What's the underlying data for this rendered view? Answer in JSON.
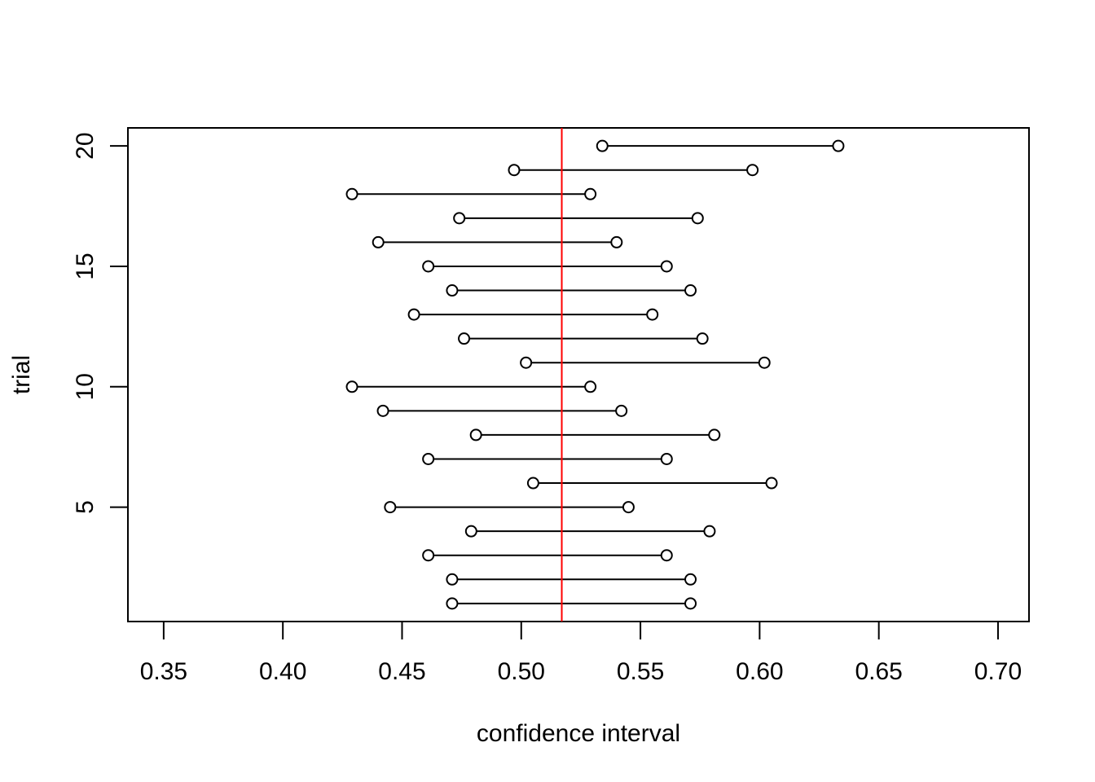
{
  "chart_data": {
    "type": "interval",
    "title": "",
    "xlabel": "confidence interval",
    "ylabel": "trial",
    "xlim": [
      0.335,
      0.713
    ],
    "ylim": [
      0.25,
      20.75
    ],
    "x_ticks": [
      "0.35",
      "0.40",
      "0.45",
      "0.50",
      "0.55",
      "0.60",
      "0.65",
      "0.70"
    ],
    "y_ticks": [
      "5",
      "10",
      "15",
      "20"
    ],
    "reference_line": {
      "x": 0.517,
      "color": "#ff0000"
    },
    "grid": false,
    "colors": {
      "intervals": "#000000",
      "reference": "#ff0000"
    },
    "intervals": [
      {
        "trial": 1,
        "lower": 0.471,
        "upper": 0.571
      },
      {
        "trial": 2,
        "lower": 0.471,
        "upper": 0.571
      },
      {
        "trial": 3,
        "lower": 0.461,
        "upper": 0.561
      },
      {
        "trial": 4,
        "lower": 0.479,
        "upper": 0.579
      },
      {
        "trial": 5,
        "lower": 0.445,
        "upper": 0.545
      },
      {
        "trial": 6,
        "lower": 0.505,
        "upper": 0.605
      },
      {
        "trial": 7,
        "lower": 0.461,
        "upper": 0.561
      },
      {
        "trial": 8,
        "lower": 0.481,
        "upper": 0.581
      },
      {
        "trial": 9,
        "lower": 0.442,
        "upper": 0.542
      },
      {
        "trial": 10,
        "lower": 0.429,
        "upper": 0.529
      },
      {
        "trial": 11,
        "lower": 0.502,
        "upper": 0.602
      },
      {
        "trial": 12,
        "lower": 0.476,
        "upper": 0.576
      },
      {
        "trial": 13,
        "lower": 0.455,
        "upper": 0.555
      },
      {
        "trial": 14,
        "lower": 0.471,
        "upper": 0.571
      },
      {
        "trial": 15,
        "lower": 0.461,
        "upper": 0.561
      },
      {
        "trial": 16,
        "lower": 0.44,
        "upper": 0.54
      },
      {
        "trial": 17,
        "lower": 0.474,
        "upper": 0.574
      },
      {
        "trial": 18,
        "lower": 0.429,
        "upper": 0.529
      },
      {
        "trial": 19,
        "lower": 0.497,
        "upper": 0.597
      },
      {
        "trial": 20,
        "lower": 0.534,
        "upper": 0.633
      }
    ]
  }
}
